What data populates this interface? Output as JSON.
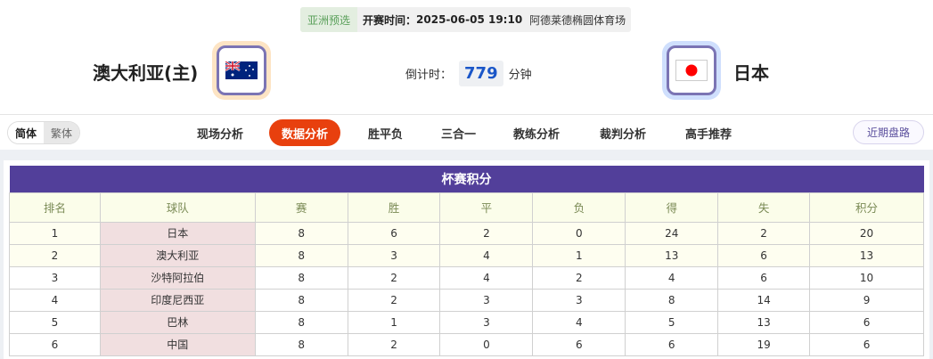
{
  "match": {
    "competition": "亚洲预选",
    "start_label": "开赛时间：",
    "start_time": "2025-06-05 19:10",
    "venue": "阿德莱德椭圆体育场",
    "home": {
      "name": "澳大利亚(主)",
      "flag": "australia-flag"
    },
    "away": {
      "name": "日本",
      "flag": "japan-flag"
    },
    "countdown_label": "倒计时：",
    "countdown_value": "779",
    "countdown_unit": "分钟"
  },
  "colors": {
    "accent": "#e8400e",
    "table_header": "#523f9a",
    "countdown": "#1a56c8"
  },
  "lang": {
    "simplified": "简体",
    "traditional": "繁体"
  },
  "tabs": [
    "现场分析",
    "数据分析",
    "胜平负",
    "三合一",
    "教练分析",
    "裁判分析",
    "高手推荐"
  ],
  "active_tab": "数据分析",
  "recent_button": "近期盘路",
  "standings": {
    "title": "杯赛积分",
    "columns": [
      "排名",
      "球队",
      "赛",
      "胜",
      "平",
      "负",
      "得",
      "失",
      "积分"
    ],
    "rows": [
      [
        "1",
        "日本",
        "8",
        "6",
        "2",
        "0",
        "24",
        "2",
        "20"
      ],
      [
        "2",
        "澳大利亚",
        "8",
        "3",
        "4",
        "1",
        "13",
        "6",
        "13"
      ],
      [
        "3",
        "沙特阿拉伯",
        "8",
        "2",
        "4",
        "2",
        "4",
        "6",
        "10"
      ],
      [
        "4",
        "印度尼西亚",
        "8",
        "2",
        "3",
        "3",
        "8",
        "14",
        "9"
      ],
      [
        "5",
        "巴林",
        "8",
        "1",
        "3",
        "4",
        "5",
        "13",
        "6"
      ],
      [
        "6",
        "中国",
        "8",
        "2",
        "0",
        "6",
        "6",
        "19",
        "6"
      ]
    ]
  }
}
